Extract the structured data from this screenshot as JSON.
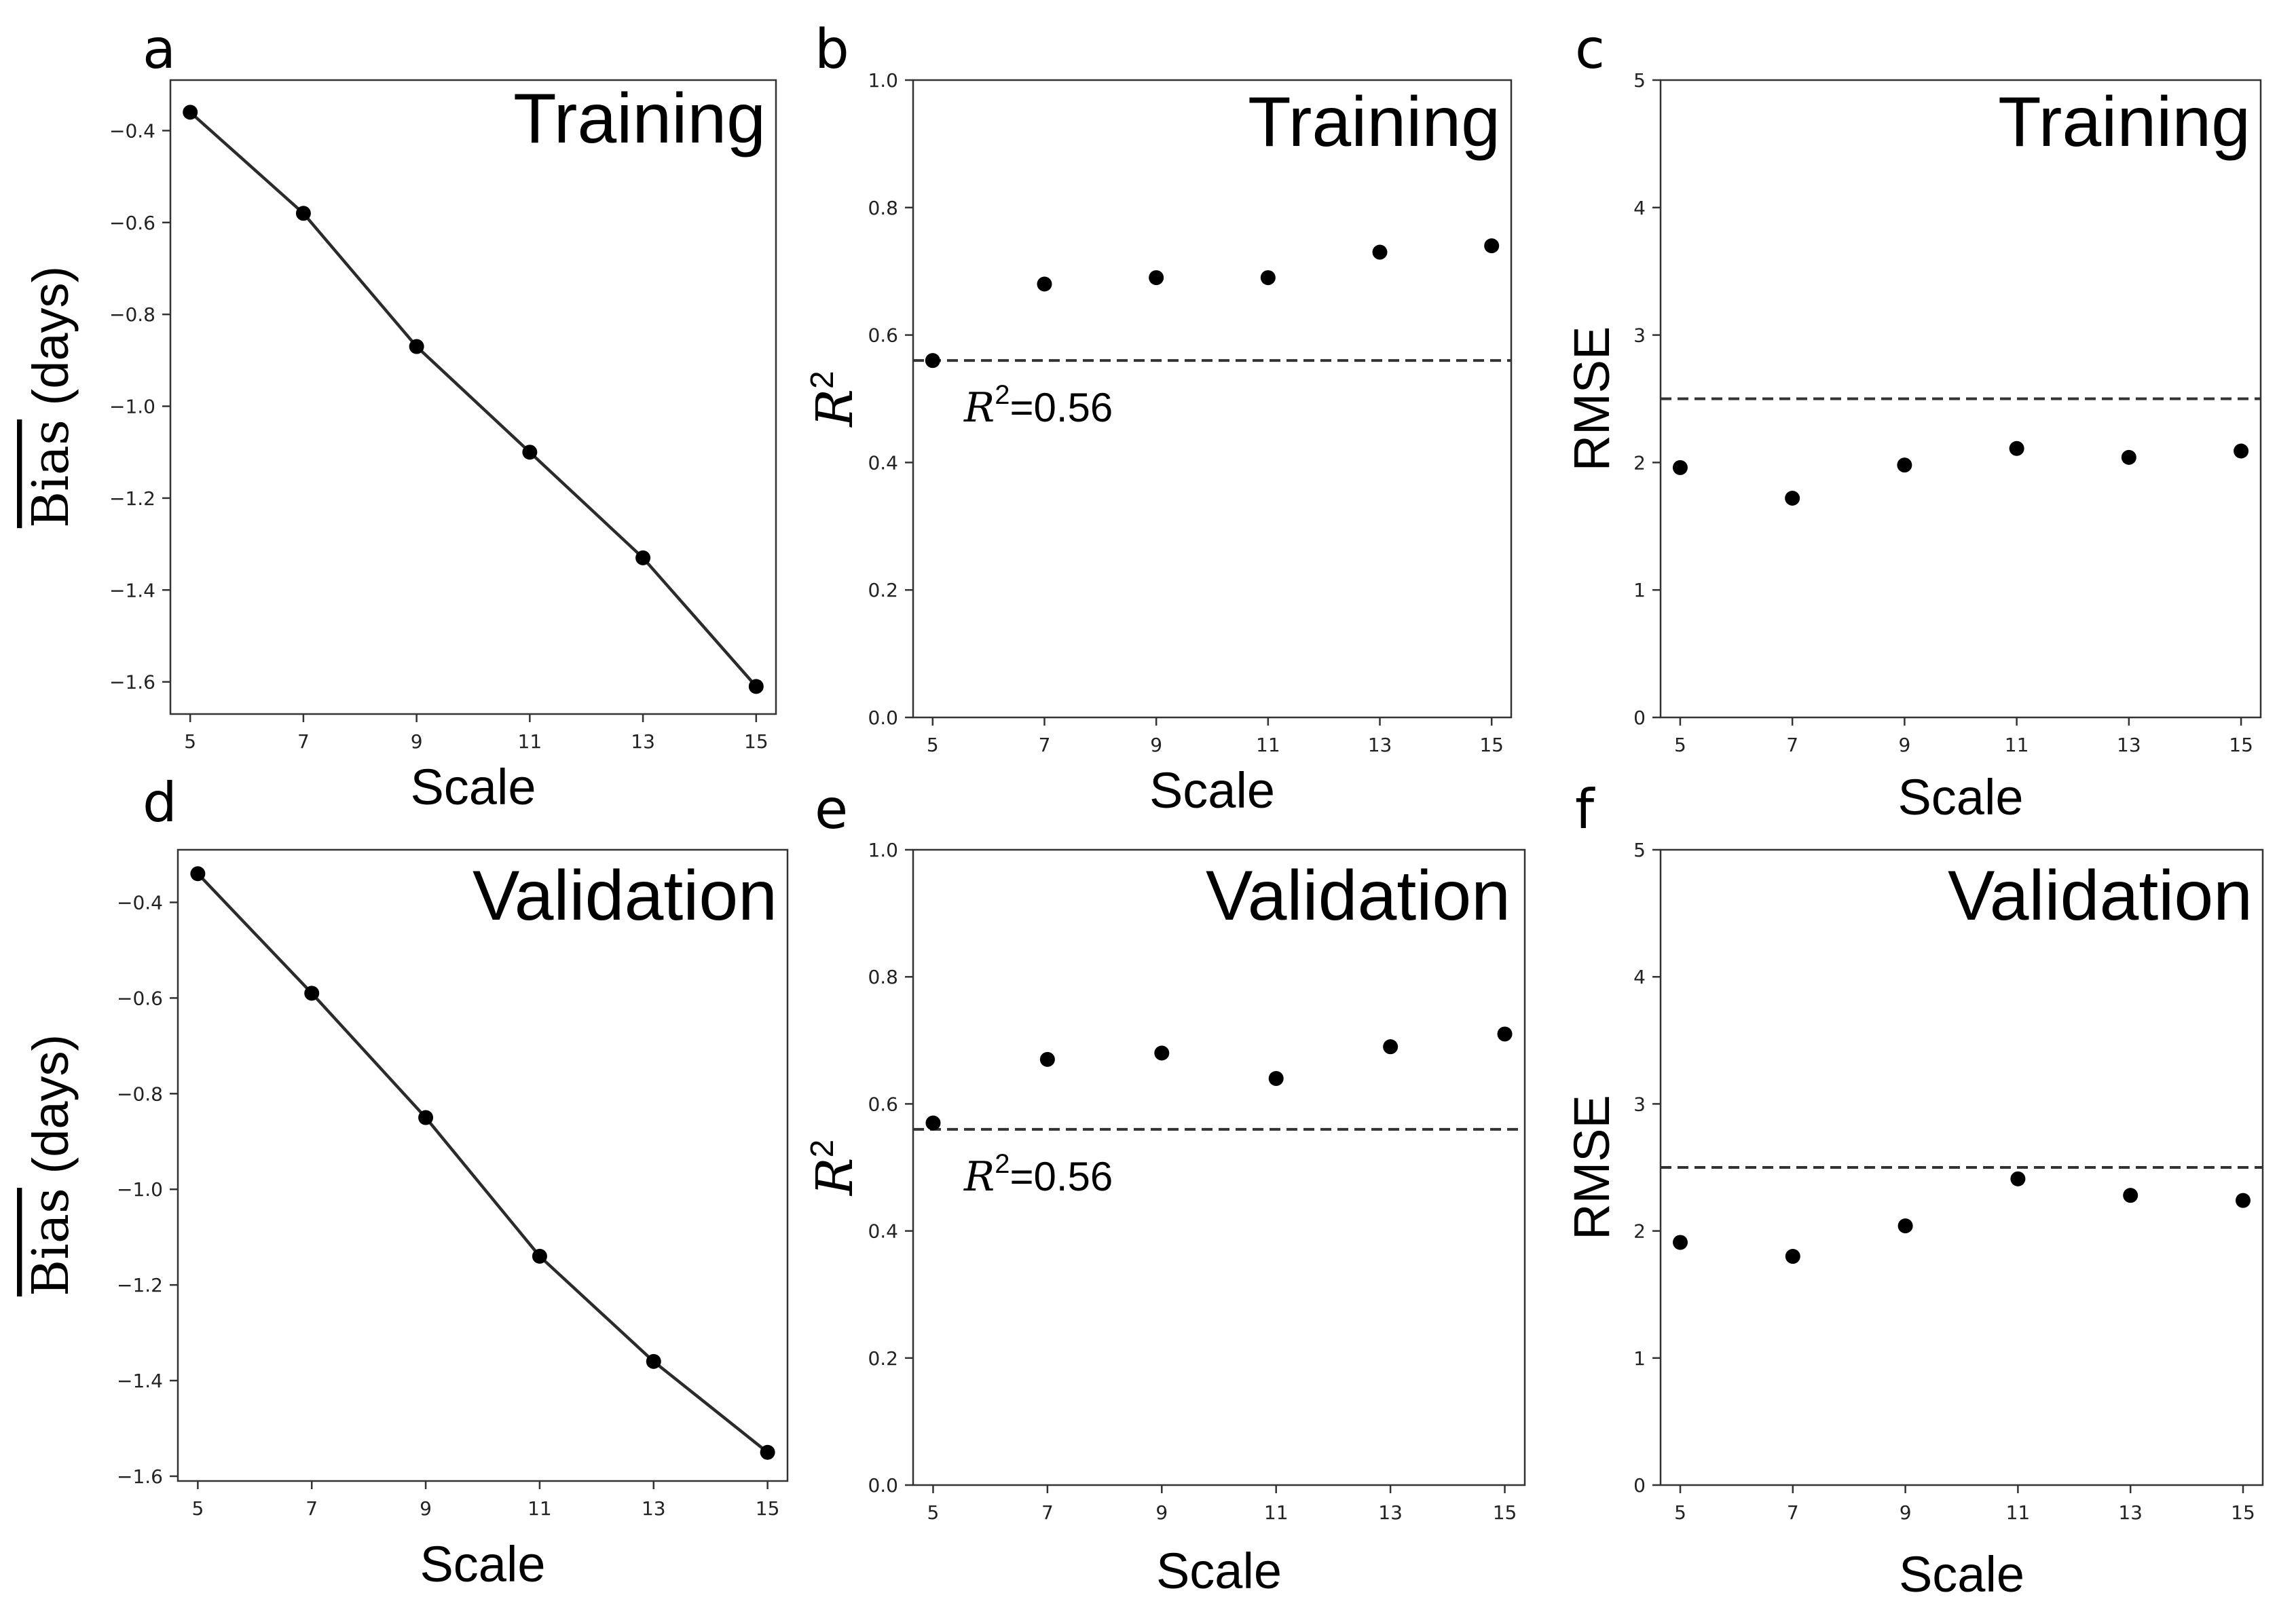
{
  "figure": {
    "panels": [
      "a",
      "b",
      "c",
      "d",
      "e",
      "f"
    ]
  },
  "chart_data": [
    {
      "id": "a",
      "type": "line",
      "panel_label": "a",
      "title": "Training",
      "xlabel": "Scale",
      "ylabel": "Bias (days)",
      "ylabel_overline": "Bias",
      "ylabel_suffix": " (days)",
      "x": [
        5,
        7,
        9,
        11,
        13,
        15
      ],
      "y": [
        -0.36,
        -0.58,
        -0.87,
        -1.1,
        -1.33,
        -1.61
      ],
      "xlim": [
        4.65,
        15.35
      ],
      "ylim": [
        -1.67,
        -0.29
      ],
      "xticks": [
        5,
        7,
        9,
        11,
        13,
        15
      ],
      "yticks": [
        -1.6,
        -1.4,
        -1.2,
        -1.0,
        -0.8,
        -0.6,
        -0.4
      ],
      "ytick_labels": [
        "−1.6",
        "−1.4",
        "−1.2",
        "−1.0",
        "−0.8",
        "−0.6",
        "−0.4"
      ]
    },
    {
      "id": "b",
      "type": "scatter",
      "panel_label": "b",
      "title": "Training",
      "xlabel": "Scale",
      "ylabel": "R2",
      "ylabel_base": "R",
      "ylabel_sup": "2",
      "x": [
        5,
        7,
        9,
        11,
        13,
        15
      ],
      "y": [
        0.56,
        0.68,
        0.69,
        0.69,
        0.73,
        0.74
      ],
      "xlim": [
        4.65,
        15.35
      ],
      "ylim": [
        0.0,
        1.0
      ],
      "xticks": [
        5,
        7,
        9,
        11,
        13,
        15
      ],
      "yticks": [
        0.0,
        0.2,
        0.4,
        0.6,
        0.8,
        1.0
      ],
      "ytick_labels": [
        "0.0",
        "0.2",
        "0.4",
        "0.6",
        "0.8",
        "1.0"
      ],
      "hline": 0.56,
      "annotation": {
        "base": "R",
        "sup": "2",
        "text": "=0.56"
      }
    },
    {
      "id": "c",
      "type": "scatter",
      "panel_label": "c",
      "title": "Training",
      "xlabel": "Scale",
      "ylabel": "RMSE",
      "x": [
        5,
        7,
        9,
        11,
        13,
        15
      ],
      "y": [
        1.96,
        1.72,
        1.98,
        2.11,
        2.04,
        2.09
      ],
      "xlim": [
        4.65,
        15.35
      ],
      "ylim": [
        0,
        5
      ],
      "xticks": [
        5,
        7,
        9,
        11,
        13,
        15
      ],
      "yticks": [
        0,
        1,
        2,
        3,
        4,
        5
      ],
      "ytick_labels": [
        "0",
        "1",
        "2",
        "3",
        "4",
        "5"
      ],
      "hline": 2.5
    },
    {
      "id": "d",
      "type": "line",
      "panel_label": "d",
      "title": "Validation",
      "xlabel": "Scale",
      "ylabel": "Bias (days)",
      "ylabel_overline": "Bias",
      "ylabel_suffix": " (days)",
      "x": [
        5,
        7,
        9,
        11,
        13,
        15
      ],
      "y": [
        -0.34,
        -0.59,
        -0.85,
        -1.14,
        -1.36,
        -1.55
      ],
      "xlim": [
        4.65,
        15.35
      ],
      "ylim": [
        -1.61,
        -0.29
      ],
      "xticks": [
        5,
        7,
        9,
        11,
        13,
        15
      ],
      "yticks": [
        -1.6,
        -1.4,
        -1.2,
        -1.0,
        -0.8,
        -0.6,
        -0.4
      ],
      "ytick_labels": [
        "−1.6",
        "−1.4",
        "−1.2",
        "−1.0",
        "−0.8",
        "−0.6",
        "−0.4"
      ]
    },
    {
      "id": "e",
      "type": "scatter",
      "panel_label": "e",
      "title": "Validation",
      "xlabel": "Scale",
      "ylabel": "R2",
      "ylabel_base": "R",
      "ylabel_sup": "2",
      "x": [
        5,
        7,
        9,
        11,
        13,
        15
      ],
      "y": [
        0.57,
        0.67,
        0.68,
        0.64,
        0.69,
        0.71
      ],
      "xlim": [
        4.65,
        15.35
      ],
      "ylim": [
        0.0,
        1.0
      ],
      "xticks": [
        5,
        7,
        9,
        11,
        13,
        15
      ],
      "yticks": [
        0.0,
        0.2,
        0.4,
        0.6,
        0.8,
        1.0
      ],
      "ytick_labels": [
        "0.0",
        "0.2",
        "0.4",
        "0.6",
        "0.8",
        "1.0"
      ],
      "hline": 0.56,
      "annotation": {
        "base": "R",
        "sup": "2",
        "text": "=0.56"
      }
    },
    {
      "id": "f",
      "type": "scatter",
      "panel_label": "f",
      "title": "Validation",
      "xlabel": "Scale",
      "ylabel": "RMSE",
      "x": [
        5,
        7,
        9,
        11,
        13,
        15
      ],
      "y": [
        1.91,
        1.8,
        2.04,
        2.41,
        2.28,
        2.24
      ],
      "xlim": [
        4.65,
        15.35
      ],
      "ylim": [
        0,
        5
      ],
      "xticks": [
        5,
        7,
        9,
        11,
        13,
        15
      ],
      "yticks": [
        0,
        1,
        2,
        3,
        4,
        5
      ],
      "ytick_labels": [
        "0",
        "1",
        "2",
        "3",
        "4",
        "5"
      ],
      "hline": 2.5
    }
  ]
}
